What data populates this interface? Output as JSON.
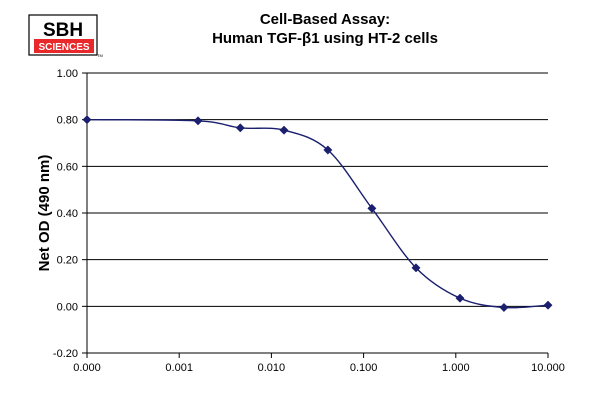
{
  "logo": {
    "top": "SBH",
    "bottom": "SCIENCES",
    "mark": "TM",
    "bottom_bg_color": "#e8282b"
  },
  "chart_data": {
    "type": "line",
    "title_lines": [
      "Cell-Based Assay:",
      "Human TGF-β1 using HT-2 cells"
    ],
    "xlabel": "",
    "ylabel": "Net OD (490 nm)",
    "x_scale": "log",
    "x_tick_labels": [
      "0.000",
      "0.001",
      "0.010",
      "0.100",
      "1.000",
      "10.000"
    ],
    "y_tick_labels": [
      "1.00",
      "0.80",
      "0.60",
      "0.40",
      "0.20",
      "0.00",
      "-0.20"
    ],
    "ylim": [
      -0.2,
      1.0
    ],
    "grid": "horizontal",
    "legend": "none",
    "marker": "diamond",
    "line_color": "#1a1f6e",
    "points": [
      {
        "x": 0.0001,
        "y": 0.8
      },
      {
        "x": 0.0016,
        "y": 0.795
      },
      {
        "x": 0.0046,
        "y": 0.765
      },
      {
        "x": 0.0137,
        "y": 0.755
      },
      {
        "x": 0.041,
        "y": 0.67
      },
      {
        "x": 0.123,
        "y": 0.42
      },
      {
        "x": 0.37,
        "y": 0.165
      },
      {
        "x": 1.11,
        "y": 0.035
      },
      {
        "x": 3.33,
        "y": -0.005
      },
      {
        "x": 10.0,
        "y": 0.005
      }
    ]
  }
}
